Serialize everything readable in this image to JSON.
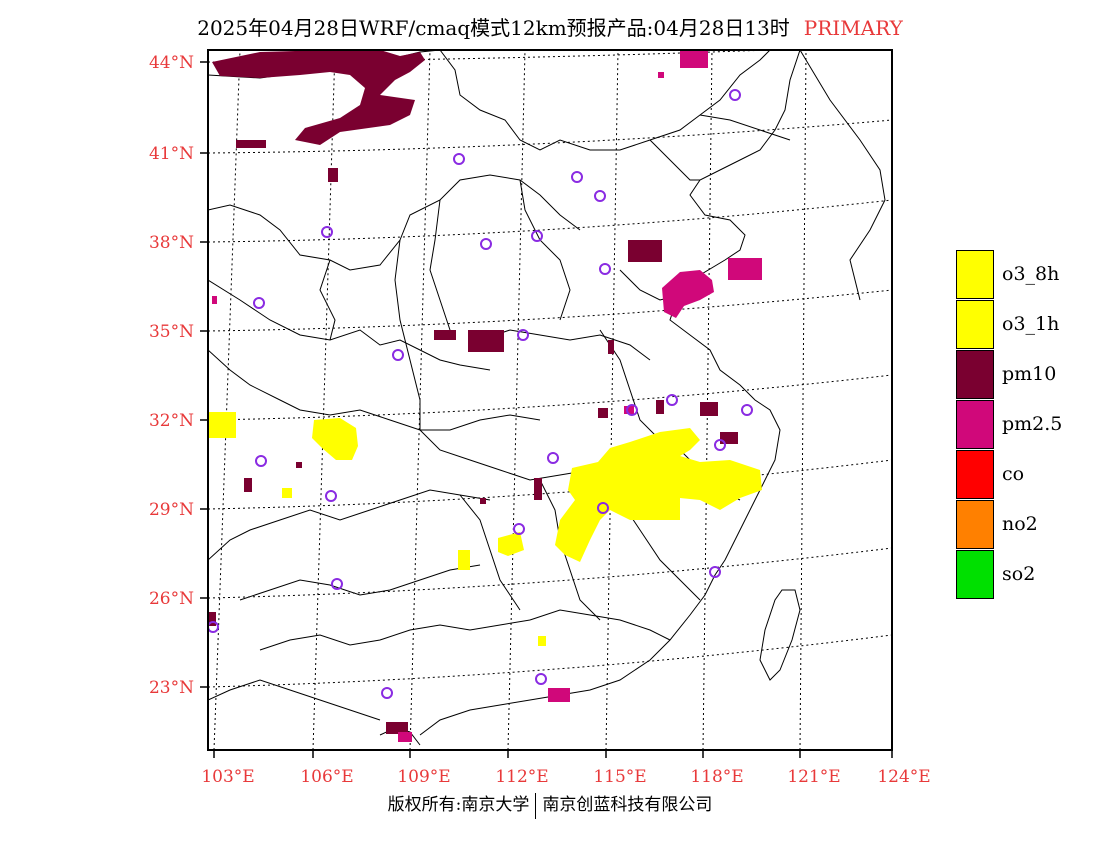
{
  "title": {
    "main": "2025年04月28日WRF/cmaq模式12km预报产品:04月28日13时",
    "tag": "PRIMARY"
  },
  "colors": {
    "axis_label": "#e8393a",
    "o3_8h": "#ffff00",
    "o3_1h": "#ffff00",
    "pm10": "#7a0030",
    "pm25": "#d0087a",
    "co": "#ff0000",
    "no2": "#ff8000",
    "so2": "#00e000",
    "station": "#8a2be2"
  },
  "axes": {
    "lon_labels": [
      "103°E",
      "106°E",
      "109°E",
      "112°E",
      "115°E",
      "118°E",
      "121°E",
      "124°E"
    ],
    "lat_labels": [
      "44°N",
      "41°N",
      "38°N",
      "35°N",
      "32°N",
      "29°N",
      "26°N",
      "23°N"
    ]
  },
  "legend": {
    "items": [
      {
        "label": "o3_8h",
        "color": "#ffff00"
      },
      {
        "label": "o3_1h",
        "color": "#ffff00"
      },
      {
        "label": "pm10",
        "color": "#7a0030"
      },
      {
        "label": "pm2.5",
        "color": "#d0087a"
      },
      {
        "label": "co",
        "color": "#ff0000"
      },
      {
        "label": "no2",
        "color": "#ff8000"
      },
      {
        "label": "so2",
        "color": "#00e000"
      }
    ]
  },
  "copyright": {
    "left": "版权所有:南京大学",
    "right": "南京创蓝科技有限公司"
  }
}
